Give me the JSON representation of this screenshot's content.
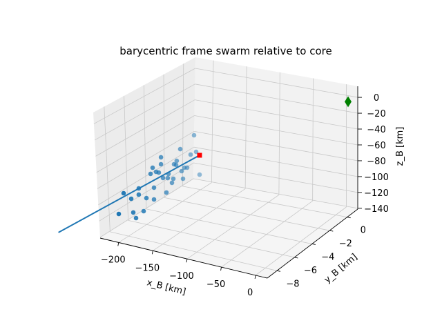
{
  "chart_data": {
    "type": "scatter3d",
    "title": "barycentric frame swarm relative to core",
    "xlabel": "x_B [km]",
    "ylabel": "y_B [km]",
    "zlabel": "z_B [km]",
    "xlim": [
      -227,
      17
    ],
    "ylim": [
      -9.1,
      1.2
    ],
    "zlim": [
      -141,
      14
    ],
    "grid": true,
    "xticks": [
      "-200",
      "-150",
      "-100",
      "-50",
      "0"
    ],
    "xtick_values": [
      -200,
      -150,
      -100,
      -50,
      0
    ],
    "yticks": [
      "0",
      "-2",
      "-4",
      "-6",
      "-8"
    ],
    "ytick_values": [
      0,
      -2,
      -4,
      -6,
      -8
    ],
    "zticks": [
      "0",
      "-20",
      "-40",
      "-60",
      "-80",
      "-100",
      "-120",
      "-140"
    ],
    "ztick_values": [
      0,
      -20,
      -40,
      -60,
      -80,
      -100,
      -120,
      -140
    ],
    "swarm": {
      "color": "#1f77b4",
      "points": [
        [
          -200,
          -0.69,
          -71.2
        ],
        [
          -200,
          -2.23,
          -76.8
        ],
        [
          -200,
          -1.08,
          -92.4
        ],
        [
          -200,
          -0.46,
          -93.6
        ],
        [
          -200,
          -4.38,
          -70.7
        ],
        [
          -200,
          -2.62,
          -88.5
        ],
        [
          -200,
          -2.92,
          -90.5
        ],
        [
          -200,
          -2.69,
          -93.1
        ],
        [
          -200,
          -4.38,
          -79.4
        ],
        [
          -200,
          -1.77,
          -103.5
        ],
        [
          -200,
          -1.46,
          -105.8
        ],
        [
          -200,
          -2.08,
          -105.5
        ],
        [
          -200,
          -5.31,
          -76.7
        ],
        [
          -200,
          -4.92,
          -84.8
        ],
        [
          -200,
          -4.62,
          -88.0
        ],
        [
          -200,
          -5.54,
          -82.6
        ],
        [
          -200,
          -3.54,
          -97.8
        ],
        [
          -200,
          -4.15,
          -98.3
        ],
        [
          -200,
          -3.62,
          -102.5
        ],
        [
          -200,
          -3.0,
          -108.0
        ],
        [
          -200,
          -1.92,
          -116.2
        ],
        [
          -200,
          -3.15,
          -111.9
        ],
        [
          -200,
          -0.08,
          -125.0
        ],
        [
          -200,
          -5.15,
          -102.8
        ],
        [
          -200,
          -6.85,
          -90.8
        ],
        [
          -200,
          -3.77,
          -119.4
        ],
        [
          -200,
          -8.54,
          -84.0
        ],
        [
          -200,
          -6.85,
          -98.6
        ],
        [
          -200,
          -7.69,
          -97.4
        ],
        [
          -200,
          -6.0,
          -109.4
        ],
        [
          -200,
          -5.15,
          -117.5
        ],
        [
          -200,
          -9.08,
          -105.8
        ],
        [
          -200,
          -7.46,
          -116.3
        ],
        [
          -200,
          -6.31,
          -123.4
        ],
        [
          -200,
          -7.15,
          -125.6
        ]
      ]
    },
    "trajectory": {
      "color": "#1f77b4",
      "points": [
        [
          -200,
          -0.08,
          -100.8
        ],
        [
          -200,
          -15.8,
          -78
        ]
      ]
    },
    "barycenter_marker": {
      "color": "#ff0000",
      "shape": "square",
      "point": [
        -200,
        -0.08,
        -100.8
      ]
    },
    "core_marker": {
      "color": "#008000",
      "shape": "diamond",
      "point": [
        0,
        0,
        0
      ]
    }
  }
}
